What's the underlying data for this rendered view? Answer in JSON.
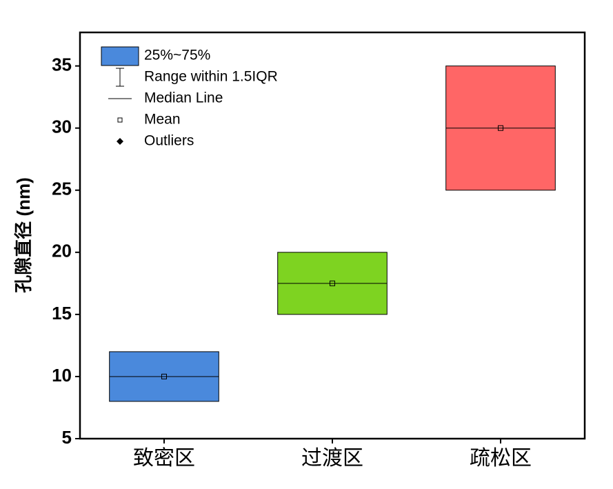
{
  "chart_data": {
    "type": "box",
    "ylabel": "孔隙直径 (nm)",
    "categories": [
      "致密区",
      "过渡区",
      "疏松区"
    ],
    "q1": [
      8,
      15,
      25
    ],
    "q3": [
      12,
      20,
      35
    ],
    "median": [
      10,
      17.5,
      30
    ],
    "mean": [
      10,
      17.5,
      30
    ],
    "colors": [
      "#4a89dc",
      "#7ed321",
      "#ff6666"
    ],
    "ylim": [
      5,
      37.7
    ],
    "yticks": [
      5,
      10,
      15,
      20,
      25,
      30,
      35
    ],
    "legend": [
      "25%~75%",
      "Range within 1.5IQR",
      "Median Line",
      "Mean",
      "Outliers"
    ],
    "legend_position": "upper left"
  }
}
